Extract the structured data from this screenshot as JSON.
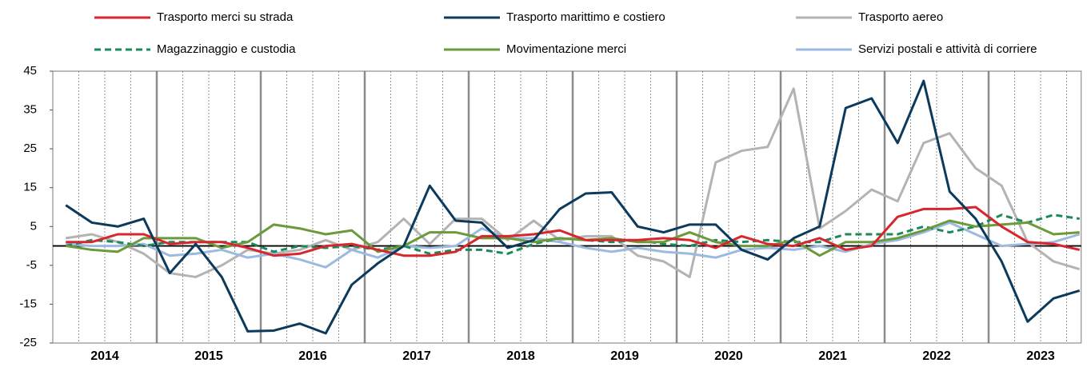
{
  "chart_data": {
    "type": "line",
    "years": [
      "2014",
      "2015",
      "2016",
      "2017",
      "2018",
      "2019",
      "2020",
      "2021",
      "2022",
      "2023"
    ],
    "ylim": [
      -25,
      45
    ],
    "yticks": [
      45,
      35,
      25,
      15,
      5,
      -5,
      -15,
      -25
    ],
    "series": [
      {
        "name": "Trasporto merci su strada",
        "color": "#d7262d",
        "dash": false,
        "values": [
          1,
          1,
          3,
          3,
          0.5,
          1,
          1,
          -0.5,
          -2.5,
          -2,
          0,
          0.5,
          -1,
          -2.5,
          -2.5,
          -1.5,
          2.5,
          2.5,
          3,
          4,
          1.5,
          1.5,
          1.5,
          2,
          1.5,
          -0.5,
          2.5,
          0.5,
          0,
          2,
          -1,
          0,
          7.5,
          9.5,
          9.5,
          10,
          5,
          1,
          0.5,
          -1
        ]
      },
      {
        "name": "Trasporto marittimo e costiero",
        "color": "#0b3a5c",
        "dash": false,
        "values": [
          10.5,
          6,
          5,
          7,
          -7,
          0.5,
          -8,
          -22,
          -21.8,
          -20,
          -22.5,
          -10,
          -4.5,
          0,
          15.5,
          6.5,
          6,
          -0.5,
          1.5,
          9.5,
          13.5,
          13.8,
          5,
          3.5,
          5.5,
          5.5,
          -1,
          -3.5,
          2,
          5,
          35.5,
          38,
          26.5,
          42.5,
          14,
          7,
          -4,
          -19.5,
          -13.5,
          -11.5
        ]
      },
      {
        "name": "Trasporto aereo",
        "color": "#b3b3b3",
        "dash": false,
        "values": [
          2,
          3,
          1,
          -2,
          -7,
          -8,
          -5,
          -1,
          -2,
          -1,
          1.5,
          -1,
          1,
          7,
          0.5,
          7,
          7,
          1.5,
          6.5,
          1.5,
          2.5,
          2.5,
          -2.5,
          -4,
          -8,
          21.5,
          24.5,
          25.5,
          40.5,
          4.5,
          9,
          14.5,
          11.5,
          26.5,
          29,
          20,
          15.5,
          1,
          -4,
          -6
        ]
      },
      {
        "name": "Magazzinaggio e custodia",
        "color": "#1a8a5a",
        "dash": true,
        "values": [
          0,
          1.5,
          1,
          0,
          1,
          1,
          1,
          1,
          -1.5,
          0,
          -0.5,
          0,
          -1,
          0,
          -2,
          -1,
          -1,
          -2,
          0.5,
          2,
          1.5,
          1,
          1.5,
          0.5,
          0,
          1.5,
          1,
          1.5,
          1,
          1,
          3,
          3,
          3,
          5,
          3.5,
          5,
          8,
          6,
          8,
          7
        ]
      },
      {
        "name": "Movimentazione merci",
        "color": "#6a9a3a",
        "dash": false,
        "values": [
          0,
          -1,
          -1.5,
          2,
          2,
          2,
          -0.5,
          1,
          5.5,
          4.5,
          3,
          4,
          -1.5,
          0,
          3.5,
          3.5,
          2,
          2,
          1,
          2,
          1.5,
          2,
          1,
          1,
          3.5,
          1,
          0,
          0,
          1.5,
          -2.5,
          1,
          1,
          2,
          4,
          6.5,
          5,
          5.5,
          6,
          3,
          3.5
        ]
      },
      {
        "name": "Servizi postali e attività di corriere",
        "color": "#9cb9e0",
        "dash": false,
        "values": [
          0.5,
          0,
          0,
          0.5,
          -2.5,
          -2,
          -1,
          -3,
          -2,
          -3.5,
          -5.5,
          -1,
          -3,
          0,
          -0.5,
          0,
          4.5,
          2,
          2,
          1,
          -0.5,
          -1.5,
          -0.5,
          -1.5,
          -2,
          -3,
          -1,
          -0.5,
          -1,
          0,
          -1.5,
          0.5,
          1.5,
          3.5,
          6,
          3,
          0,
          0.5,
          1,
          3
        ]
      }
    ]
  }
}
